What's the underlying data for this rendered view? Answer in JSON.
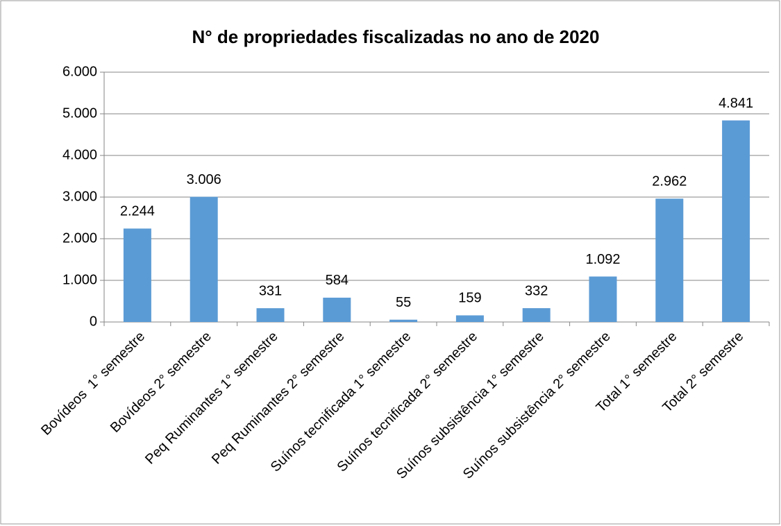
{
  "chart_data": {
    "type": "bar",
    "title": "N° de propriedades fiscalizadas no ano de 2020",
    "categories": [
      "Bovídeos  1° semestre",
      "Bovídeos 2° semestre",
      "Peq Ruminantes 1° semestre",
      "Peq Ruminantes 2° semestre",
      "Suínos tecnificada 1° semestre",
      "Suínos tecnificada 2° semestre",
      "Suínos subsistência 1° semestre",
      "Suínos subsistência 2° semestre",
      "Total 1° semestre",
      "Total 2° semestre"
    ],
    "values": [
      2244,
      3006,
      331,
      584,
      55,
      159,
      332,
      1092,
      2962,
      4841
    ],
    "value_labels": [
      "2.244",
      "3.006",
      "331",
      "584",
      "55",
      "159",
      "332",
      "1.092",
      "2.962",
      "4.841"
    ],
    "color": "#5b9bd5",
    "ylim": [
      0,
      6000
    ],
    "yticks": [
      0,
      {
        "value": 1000,
        "label": "1.000"
      },
      {
        "value": 2000,
        "label": "2.000"
      },
      {
        "value": 3000,
        "label": "3.000"
      },
      {
        "value": 4000,
        "label": "4.000"
      },
      {
        "value": 5000,
        "label": "5.000"
      },
      {
        "value": 6000,
        "label": "6.000"
      }
    ],
    "grid": true
  }
}
